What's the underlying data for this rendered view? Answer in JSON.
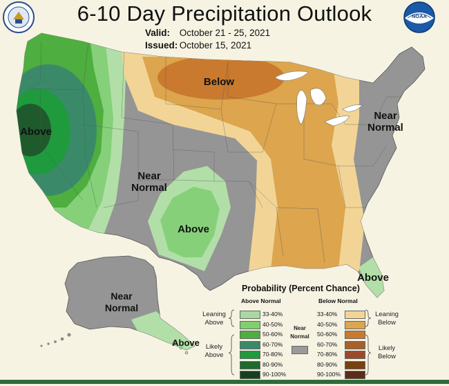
{
  "header": {
    "title": "6-10 Day Precipitation Outlook",
    "valid_label": "Valid:",
    "valid_value": "October 21 - 25, 2021",
    "issued_label": "Issued:",
    "issued_value": "October 15, 2021"
  },
  "logos": {
    "left": "seal-icon",
    "right": "noaa-logo-icon"
  },
  "map_labels": {
    "above_west": "Above",
    "below_north": "Below",
    "near_normal_west": "Near\nNormal",
    "near_normal_east": "Near\nNormal",
    "above_southwest": "Above",
    "above_florida": "Above",
    "near_normal_alaska": "Near\nNormal",
    "above_alaska": "Above"
  },
  "legend": {
    "title": "Probability (Percent Chance)",
    "above_heading": "Above Normal",
    "below_heading": "Below Normal",
    "near_label": "Near\nNormal",
    "leaning_above": "Leaning\nAbove",
    "likely_above": "Likely\nAbove",
    "leaning_below": "Leaning\nBelow",
    "likely_below": "Likely\nBelow",
    "above_bins": [
      {
        "range": "33-40%",
        "color": "#a9d9a0"
      },
      {
        "range": "40-50%",
        "color": "#7fcf6f"
      },
      {
        "range": "50-60%",
        "color": "#4eae3f"
      },
      {
        "range": "60-70%",
        "color": "#3a8a6a"
      },
      {
        "range": "70-80%",
        "color": "#1f9a3d"
      },
      {
        "range": "80-90%",
        "color": "#1f6b2d"
      },
      {
        "range": "90-100%",
        "color": "#1a3f20"
      }
    ],
    "below_bins": [
      {
        "range": "33-40%",
        "color": "#f2d596"
      },
      {
        "range": "40-50%",
        "color": "#dca54e"
      },
      {
        "range": "50-60%",
        "color": "#c97a2e"
      },
      {
        "range": "60-70%",
        "color": "#a8602a"
      },
      {
        "range": "70-80%",
        "color": "#9a4a2a"
      },
      {
        "range": "80-90%",
        "color": "#7a4010"
      },
      {
        "range": "90-100%",
        "color": "#5a2e1a"
      }
    ],
    "near_color": "#9a9a9a"
  },
  "colors": {
    "near_normal": "#959595",
    "background": "#f6f3e3",
    "water": "#ffffff"
  }
}
